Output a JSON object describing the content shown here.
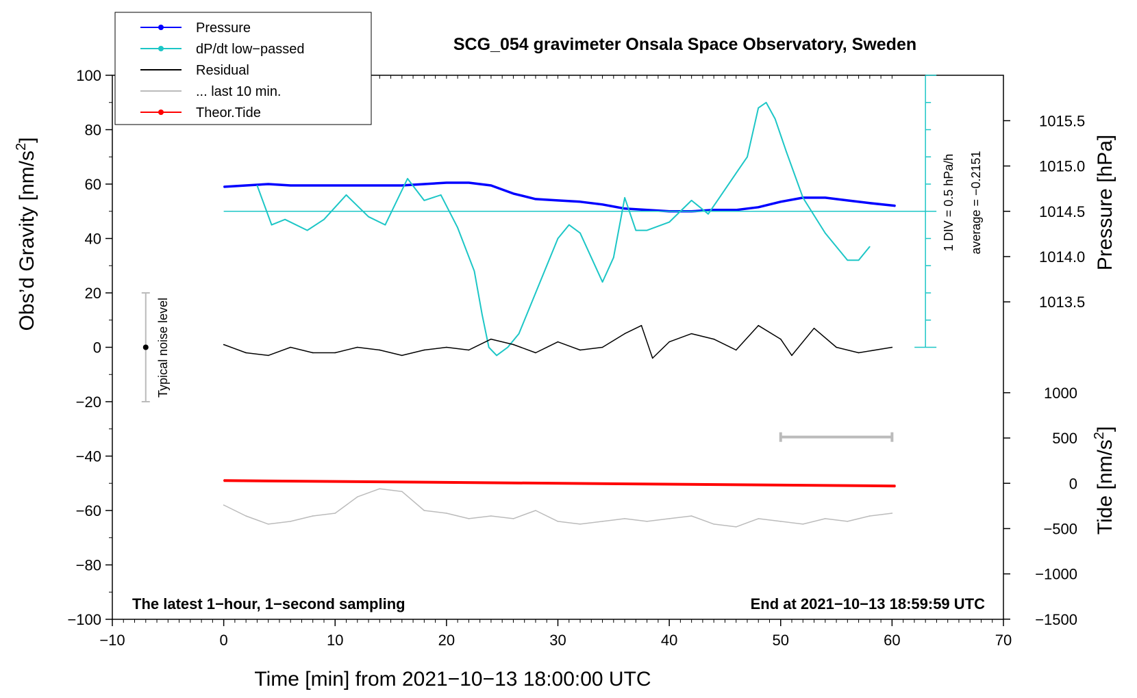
{
  "chart_data": {
    "type": "line",
    "title": "SCG_054 gravimeter Onsala Space Observatory, Sweden",
    "xlabel": "Time [min] from 2021−10−13 18:00:00 UTC",
    "ylabel_left": "Obs’d Gravity [nm/s",
    "ylabel_left_sup": "2",
    "ylabel_left_close": "]",
    "ylabel_pressure": "Pressure [hPa]",
    "ylabel_tide": "Tide [nm/s",
    "ylabel_tide_sup": "2",
    "ylabel_tide_close": "]",
    "xlim": [
      -10,
      70
    ],
    "ylim": [
      -100,
      100
    ],
    "x_ticks": [
      -10,
      0,
      10,
      20,
      30,
      40,
      50,
      60,
      70
    ],
    "x_tick_labels": [
      "−10",
      "0",
      "10",
      "20",
      "30",
      "40",
      "50",
      "60",
      "70"
    ],
    "y_ticks": [
      -100,
      -80,
      -60,
      -40,
      -20,
      0,
      20,
      40,
      60,
      80,
      100
    ],
    "y_tick_labels": [
      "−100",
      "−80",
      "−60",
      "−40",
      "−20",
      "0",
      "20",
      "40",
      "60",
      "80",
      "100"
    ],
    "pressure_ticks": [
      1013.5,
      1014.0,
      1014.5,
      1015.0,
      1015.5
    ],
    "pressure_tick_labels": [
      "1013.5",
      "1014.0",
      "1014.5",
      "1015.0",
      "1015.5"
    ],
    "pressure_axis_ref": {
      "value_a": 1014.5,
      "gravity_a": 50,
      "value_b": 1015.5,
      "gravity_b": 83.3
    },
    "tide_ticks": [
      -1500,
      -1000,
      -500,
      0,
      500,
      1000
    ],
    "tide_tick_labels": [
      "−1500",
      "−1000",
      "−500",
      "0",
      "500",
      "1000"
    ],
    "tide_axis_ref": {
      "value_a": 0,
      "gravity_a": -50,
      "value_b": 1000,
      "gravity_b": -16.7
    },
    "legend": [
      {
        "label": "Pressure",
        "color": "#0000ff",
        "marker": true
      },
      {
        "label": "dP/dt low−passed",
        "color": "#1cc6c6",
        "marker": true
      },
      {
        "label": "Residual",
        "color": "#000000",
        "marker": false
      },
      {
        "label": "... last 10 min.",
        "color": "#bbbbbb",
        "marker": false
      },
      {
        "label": "Theor.Tide",
        "color": "#ff0000",
        "marker": true
      }
    ],
    "dpdt_scale": {
      "div_label": "1 DIV = 0.5 hPa/h",
      "average_label": "average = −0.2151",
      "x": 63,
      "y_min": 0,
      "y_max": 100,
      "divisions": 10,
      "zero_line_y": 50
    },
    "noise_level": {
      "label": "Typical noise level",
      "x": -7,
      "y_center": 0,
      "y_min": -20,
      "y_max": 20
    },
    "last10_bar": {
      "x_start": 50,
      "x_end": 60,
      "y": -33
    },
    "footer_left": "The latest 1−hour, 1−second sampling",
    "footer_right": "End at 2021−10−13 18:59:59 UTC",
    "series": [
      {
        "name": "Pressure",
        "color": "#0000ff",
        "x": [
          0,
          2,
          4,
          6,
          8,
          10,
          12,
          14,
          16,
          18,
          20,
          22,
          24,
          26,
          28,
          30,
          32,
          34,
          36,
          38,
          40,
          42,
          44,
          46,
          48,
          50,
          52,
          54,
          56,
          58,
          60.3
        ],
        "y": [
          59,
          59.5,
          60,
          59.5,
          59.5,
          59.5,
          59.5,
          59.5,
          59.5,
          60,
          60.5,
          60.5,
          59.5,
          56.5,
          54.5,
          54,
          53.5,
          52.5,
          51,
          50.5,
          50,
          50,
          50.5,
          50.5,
          51.5,
          53.5,
          55,
          55,
          54,
          53,
          52
        ]
      },
      {
        "name": "dP/dt low−passed",
        "color": "#1cc6c6",
        "x": [
          3,
          4.3,
          5.5,
          7.5,
          9,
          11,
          13,
          14.5,
          16.5,
          18,
          19.5,
          21,
          22.5,
          23.2,
          23.8,
          24.5,
          25.5,
          26.5,
          28,
          30,
          31,
          32,
          33,
          34,
          35,
          36,
          37,
          38,
          40,
          42,
          43.5,
          44.5,
          46,
          47,
          48,
          48.7,
          49.5,
          50.5,
          52,
          54,
          56,
          57,
          58
        ],
        "y": [
          59.5,
          45,
          47,
          43,
          47,
          56,
          48,
          45,
          62,
          54,
          56,
          44,
          28,
          12,
          0,
          -3,
          0,
          5,
          20,
          40,
          45,
          42,
          33,
          24,
          33,
          55,
          43,
          43,
          46,
          54,
          49,
          55,
          64,
          70,
          88,
          90,
          84,
          72,
          55,
          42,
          32,
          32,
          37
        ]
      },
      {
        "name": "Residual",
        "color": "#000000",
        "x": [
          0,
          2,
          4,
          6,
          8,
          10,
          12,
          14,
          16,
          18,
          20,
          22,
          24,
          26,
          28,
          30,
          32,
          34,
          36,
          37.5,
          38.5,
          40,
          42,
          44,
          46,
          48,
          50,
          51,
          53,
          55,
          57,
          60
        ],
        "y": [
          1,
          -2,
          -3,
          0,
          -2,
          -2,
          0,
          -1,
          -3,
          -1,
          0,
          -1,
          3,
          1,
          -2,
          2,
          -1,
          0,
          5,
          8,
          -4,
          2,
          5,
          3,
          -1,
          8,
          3,
          -3,
          7,
          0,
          -2,
          0
        ]
      },
      {
        "name": "... last 10 min.",
        "color": "#bbbbbb",
        "x": [
          0,
          2,
          4,
          6,
          8,
          10,
          12,
          14,
          16,
          18,
          20,
          22,
          24,
          26,
          28,
          30,
          32,
          34,
          36,
          38,
          40,
          42,
          44,
          46,
          48,
          50,
          52,
          54,
          56,
          58,
          60
        ],
        "y": [
          -58,
          -62,
          -65,
          -64,
          -62,
          -61,
          -55,
          -52,
          -53,
          -60,
          -61,
          -63,
          -62,
          -63,
          -60,
          -64,
          -65,
          -64,
          -63,
          -64,
          -63,
          -62,
          -65,
          -66,
          -63,
          -64,
          -65,
          -63,
          -64,
          -62,
          -61
        ]
      },
      {
        "name": "Theor.Tide",
        "color": "#ff0000",
        "x": [
          0,
          60.3
        ],
        "y": [
          -49,
          -51
        ]
      }
    ]
  }
}
